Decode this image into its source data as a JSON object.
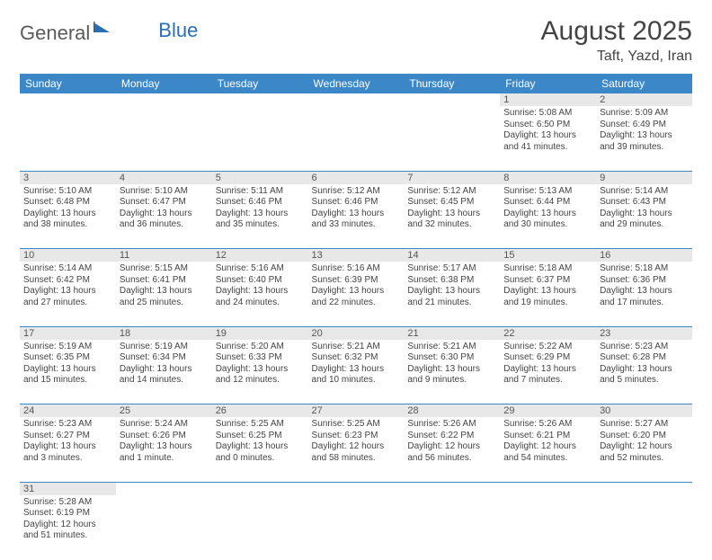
{
  "logo": {
    "text1": "General",
    "text2": "Blue"
  },
  "title": "August 2025",
  "location": "Taft, Yazd, Iran",
  "colors": {
    "header_bg": "#3b87c8",
    "header_fg": "#ffffff",
    "daynum_bg": "#e8e8e8",
    "border": "#3b87c8",
    "logo_gray": "#5a5a5a",
    "logo_blue": "#2a6fb5"
  },
  "day_headers": [
    "Sunday",
    "Monday",
    "Tuesday",
    "Wednesday",
    "Thursday",
    "Friday",
    "Saturday"
  ],
  "weeks": [
    {
      "nums": [
        "",
        "",
        "",
        "",
        "",
        "1",
        "2"
      ],
      "cells": [
        null,
        null,
        null,
        null,
        null,
        {
          "sunrise": "Sunrise: 5:08 AM",
          "sunset": "Sunset: 6:50 PM",
          "daylight": "Daylight: 13 hours and 41 minutes."
        },
        {
          "sunrise": "Sunrise: 5:09 AM",
          "sunset": "Sunset: 6:49 PM",
          "daylight": "Daylight: 13 hours and 39 minutes."
        }
      ]
    },
    {
      "nums": [
        "3",
        "4",
        "5",
        "6",
        "7",
        "8",
        "9"
      ],
      "cells": [
        {
          "sunrise": "Sunrise: 5:10 AM",
          "sunset": "Sunset: 6:48 PM",
          "daylight": "Daylight: 13 hours and 38 minutes."
        },
        {
          "sunrise": "Sunrise: 5:10 AM",
          "sunset": "Sunset: 6:47 PM",
          "daylight": "Daylight: 13 hours and 36 minutes."
        },
        {
          "sunrise": "Sunrise: 5:11 AM",
          "sunset": "Sunset: 6:46 PM",
          "daylight": "Daylight: 13 hours and 35 minutes."
        },
        {
          "sunrise": "Sunrise: 5:12 AM",
          "sunset": "Sunset: 6:46 PM",
          "daylight": "Daylight: 13 hours and 33 minutes."
        },
        {
          "sunrise": "Sunrise: 5:12 AM",
          "sunset": "Sunset: 6:45 PM",
          "daylight": "Daylight: 13 hours and 32 minutes."
        },
        {
          "sunrise": "Sunrise: 5:13 AM",
          "sunset": "Sunset: 6:44 PM",
          "daylight": "Daylight: 13 hours and 30 minutes."
        },
        {
          "sunrise": "Sunrise: 5:14 AM",
          "sunset": "Sunset: 6:43 PM",
          "daylight": "Daylight: 13 hours and 29 minutes."
        }
      ]
    },
    {
      "nums": [
        "10",
        "11",
        "12",
        "13",
        "14",
        "15",
        "16"
      ],
      "cells": [
        {
          "sunrise": "Sunrise: 5:14 AM",
          "sunset": "Sunset: 6:42 PM",
          "daylight": "Daylight: 13 hours and 27 minutes."
        },
        {
          "sunrise": "Sunrise: 5:15 AM",
          "sunset": "Sunset: 6:41 PM",
          "daylight": "Daylight: 13 hours and 25 minutes."
        },
        {
          "sunrise": "Sunrise: 5:16 AM",
          "sunset": "Sunset: 6:40 PM",
          "daylight": "Daylight: 13 hours and 24 minutes."
        },
        {
          "sunrise": "Sunrise: 5:16 AM",
          "sunset": "Sunset: 6:39 PM",
          "daylight": "Daylight: 13 hours and 22 minutes."
        },
        {
          "sunrise": "Sunrise: 5:17 AM",
          "sunset": "Sunset: 6:38 PM",
          "daylight": "Daylight: 13 hours and 21 minutes."
        },
        {
          "sunrise": "Sunrise: 5:18 AM",
          "sunset": "Sunset: 6:37 PM",
          "daylight": "Daylight: 13 hours and 19 minutes."
        },
        {
          "sunrise": "Sunrise: 5:18 AM",
          "sunset": "Sunset: 6:36 PM",
          "daylight": "Daylight: 13 hours and 17 minutes."
        }
      ]
    },
    {
      "nums": [
        "17",
        "18",
        "19",
        "20",
        "21",
        "22",
        "23"
      ],
      "cells": [
        {
          "sunrise": "Sunrise: 5:19 AM",
          "sunset": "Sunset: 6:35 PM",
          "daylight": "Daylight: 13 hours and 15 minutes."
        },
        {
          "sunrise": "Sunrise: 5:19 AM",
          "sunset": "Sunset: 6:34 PM",
          "daylight": "Daylight: 13 hours and 14 minutes."
        },
        {
          "sunrise": "Sunrise: 5:20 AM",
          "sunset": "Sunset: 6:33 PM",
          "daylight": "Daylight: 13 hours and 12 minutes."
        },
        {
          "sunrise": "Sunrise: 5:21 AM",
          "sunset": "Sunset: 6:32 PM",
          "daylight": "Daylight: 13 hours and 10 minutes."
        },
        {
          "sunrise": "Sunrise: 5:21 AM",
          "sunset": "Sunset: 6:30 PM",
          "daylight": "Daylight: 13 hours and 9 minutes."
        },
        {
          "sunrise": "Sunrise: 5:22 AM",
          "sunset": "Sunset: 6:29 PM",
          "daylight": "Daylight: 13 hours and 7 minutes."
        },
        {
          "sunrise": "Sunrise: 5:23 AM",
          "sunset": "Sunset: 6:28 PM",
          "daylight": "Daylight: 13 hours and 5 minutes."
        }
      ]
    },
    {
      "nums": [
        "24",
        "25",
        "26",
        "27",
        "28",
        "29",
        "30"
      ],
      "cells": [
        {
          "sunrise": "Sunrise: 5:23 AM",
          "sunset": "Sunset: 6:27 PM",
          "daylight": "Daylight: 13 hours and 3 minutes."
        },
        {
          "sunrise": "Sunrise: 5:24 AM",
          "sunset": "Sunset: 6:26 PM",
          "daylight": "Daylight: 13 hours and 1 minute."
        },
        {
          "sunrise": "Sunrise: 5:25 AM",
          "sunset": "Sunset: 6:25 PM",
          "daylight": "Daylight: 13 hours and 0 minutes."
        },
        {
          "sunrise": "Sunrise: 5:25 AM",
          "sunset": "Sunset: 6:23 PM",
          "daylight": "Daylight: 12 hours and 58 minutes."
        },
        {
          "sunrise": "Sunrise: 5:26 AM",
          "sunset": "Sunset: 6:22 PM",
          "daylight": "Daylight: 12 hours and 56 minutes."
        },
        {
          "sunrise": "Sunrise: 5:26 AM",
          "sunset": "Sunset: 6:21 PM",
          "daylight": "Daylight: 12 hours and 54 minutes."
        },
        {
          "sunrise": "Sunrise: 5:27 AM",
          "sunset": "Sunset: 6:20 PM",
          "daylight": "Daylight: 12 hours and 52 minutes."
        }
      ]
    },
    {
      "nums": [
        "31",
        "",
        "",
        "",
        "",
        "",
        ""
      ],
      "cells": [
        {
          "sunrise": "Sunrise: 5:28 AM",
          "sunset": "Sunset: 6:19 PM",
          "daylight": "Daylight: 12 hours and 51 minutes."
        },
        null,
        null,
        null,
        null,
        null,
        null
      ]
    }
  ]
}
